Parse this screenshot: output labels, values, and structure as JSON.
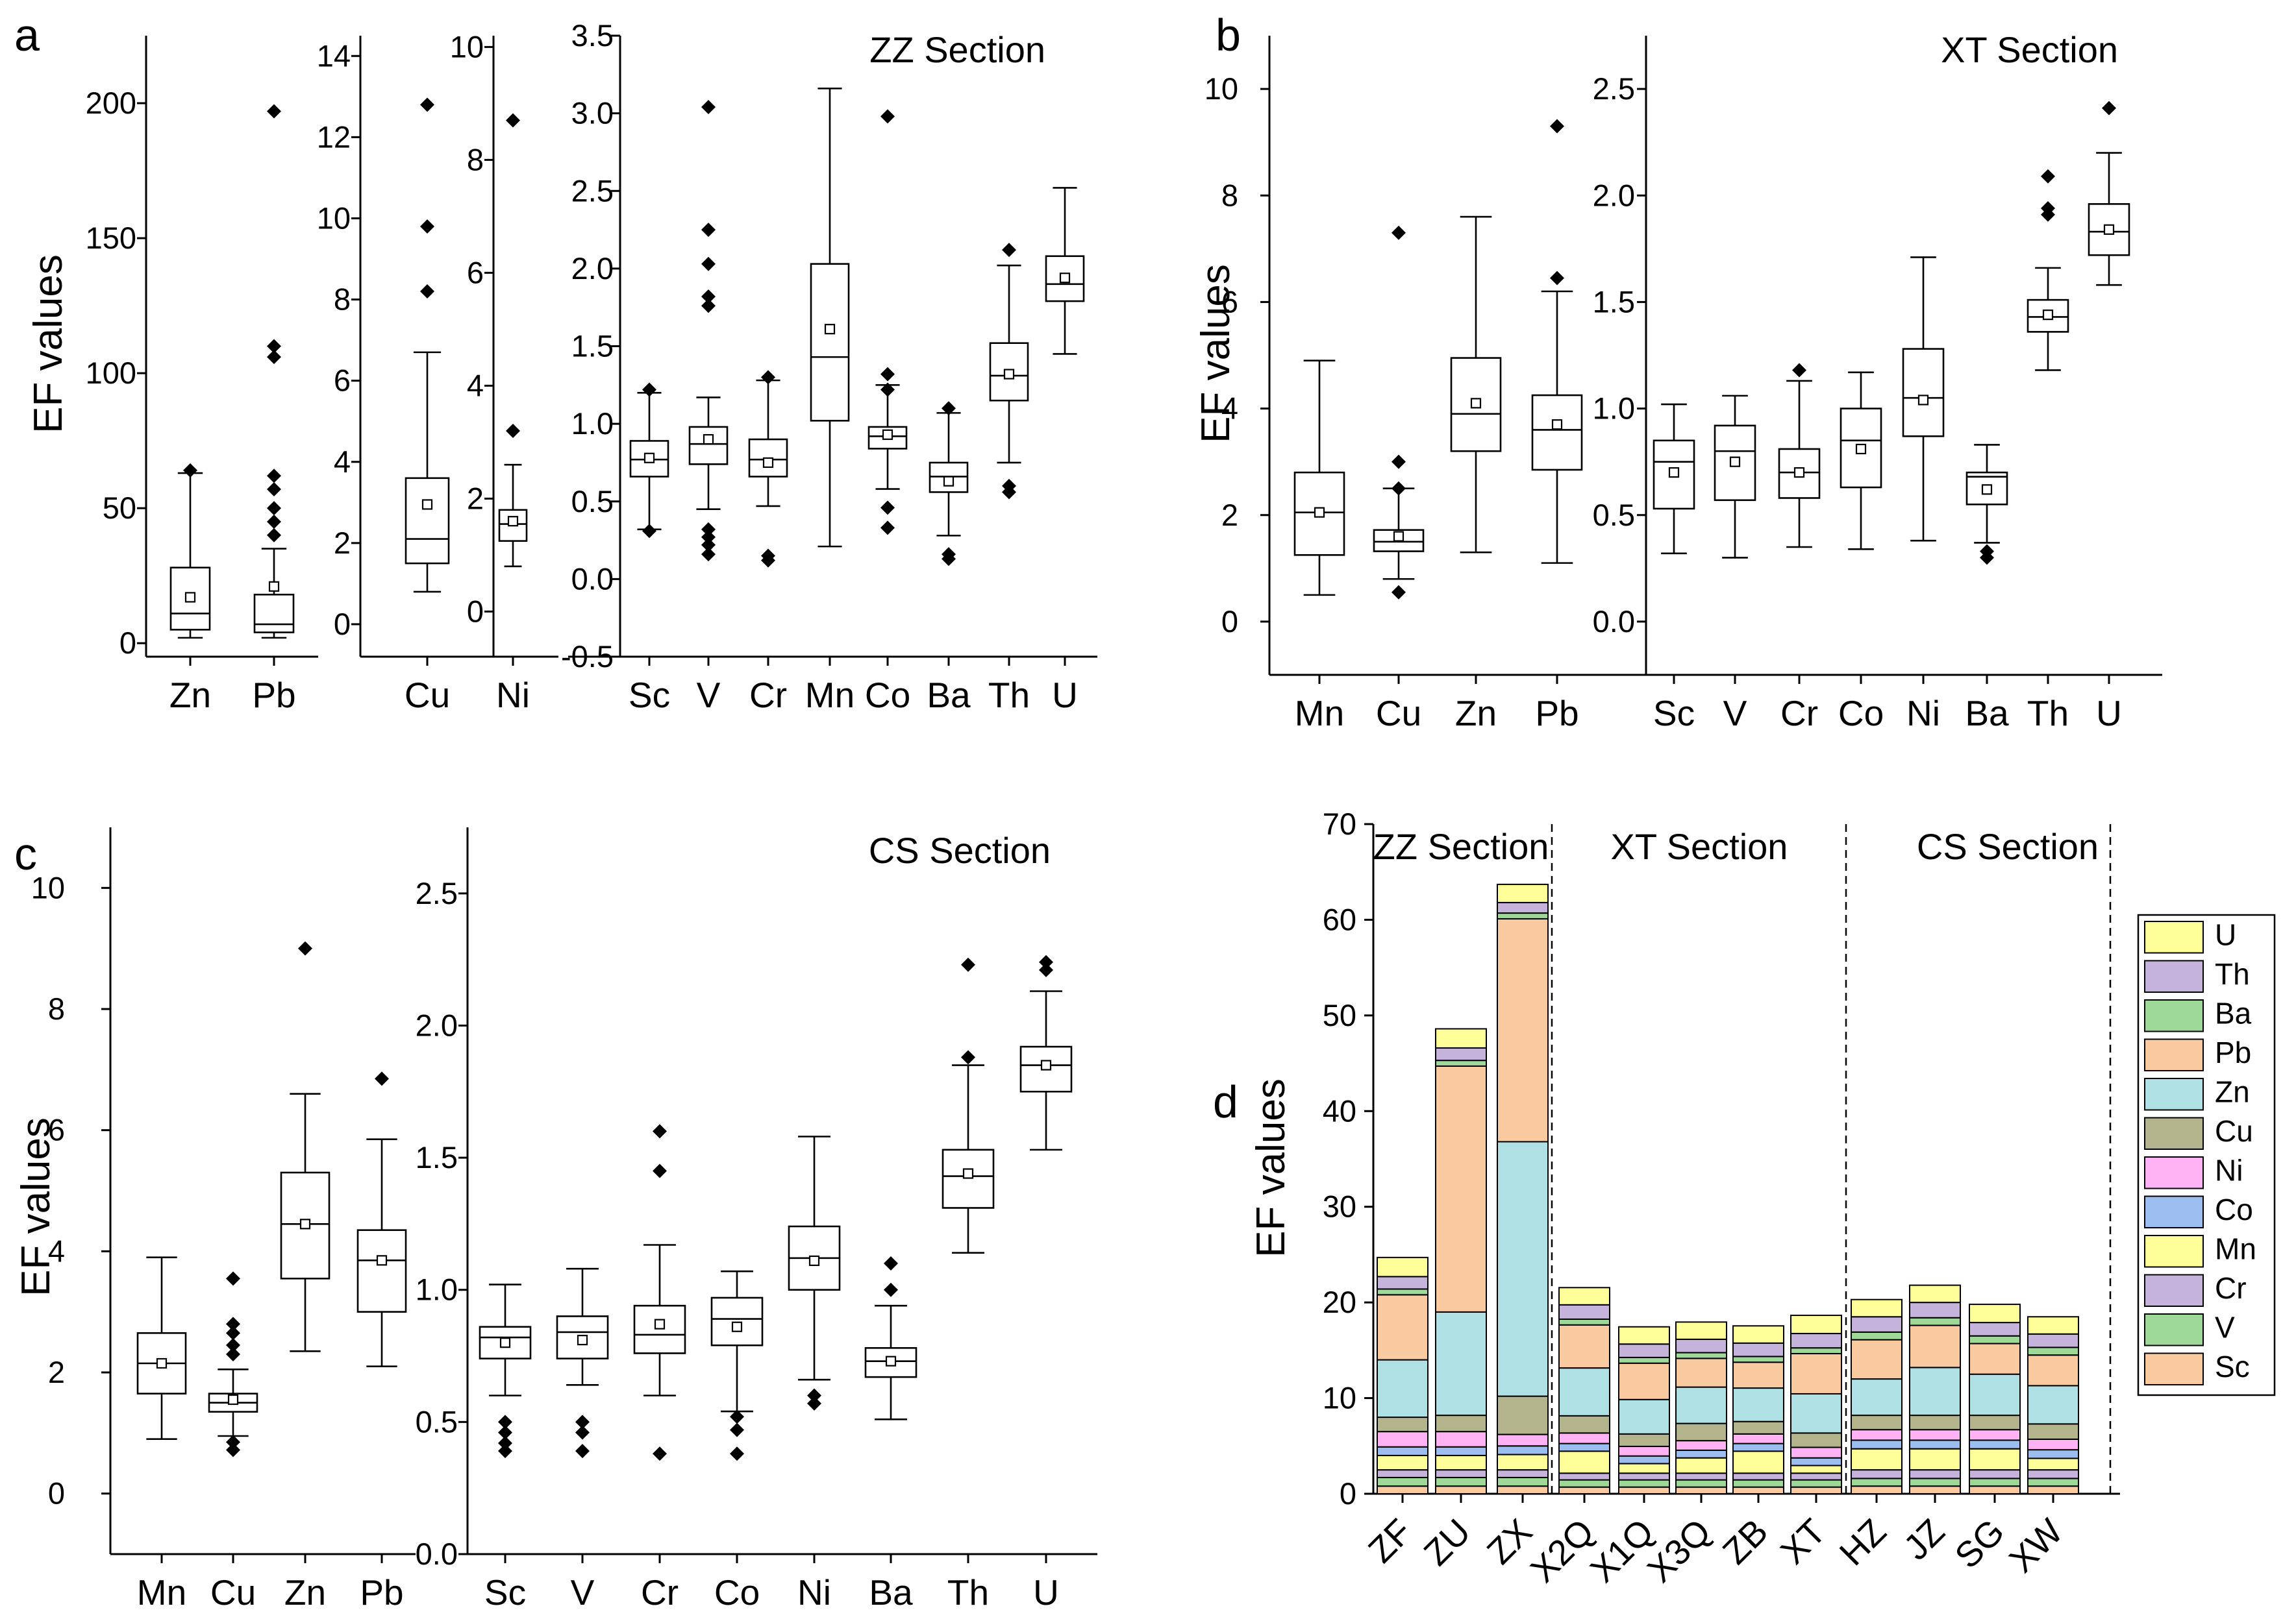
{
  "panels": [
    {
      "id": "a",
      "label": "a",
      "ylabel": "EF values",
      "section": "ZZ Section"
    },
    {
      "id": "b",
      "label": "b",
      "ylabel": "EF values",
      "section": "XT Section"
    },
    {
      "id": "c",
      "label": "c",
      "ylabel": "EF values",
      "section": "CS Section"
    },
    {
      "id": "d",
      "label": "d",
      "ylabel": "EF values"
    }
  ],
  "chart_data": [
    {
      "type": "box",
      "panel": "a",
      "subplot": "a1",
      "categories": [
        "Zn",
        "Pb"
      ],
      "ylim": [
        -5,
        225
      ],
      "yticks": [
        0,
        50,
        100,
        150,
        200
      ],
      "boxes": [
        {
          "min": 2,
          "q1": 5,
          "median": 11,
          "q3": 28,
          "max": 63,
          "mean": 17,
          "outliers": [
            64
          ]
        },
        {
          "min": 2,
          "q1": 4,
          "median": 7,
          "q3": 18,
          "max": 35,
          "mean": 21,
          "outliers": [
            197,
            110,
            106,
            62,
            57,
            50,
            45,
            40
          ]
        }
      ]
    },
    {
      "type": "box",
      "panel": "a",
      "subplot": "a2",
      "categories": [
        "Cu"
      ],
      "ylim": [
        -0.8,
        14.5
      ],
      "yticks": [
        0,
        2,
        4,
        6,
        8,
        10,
        12,
        14
      ],
      "boxes": [
        {
          "min": 0.8,
          "q1": 1.5,
          "median": 2.1,
          "q3": 3.6,
          "max": 6.7,
          "mean": 2.95,
          "outliers": [
            12.8,
            9.8,
            8.2
          ]
        }
      ]
    },
    {
      "type": "box",
      "panel": "a",
      "subplot": "a3",
      "categories": [
        "Ni"
      ],
      "ylim": [
        -0.8,
        10.2
      ],
      "yticks": [
        0,
        2,
        4,
        6,
        8,
        10
      ],
      "boxes": [
        {
          "min": 0.8,
          "q1": 1.25,
          "median": 1.55,
          "q3": 1.8,
          "max": 2.6,
          "mean": 1.6,
          "outliers": [
            8.7,
            3.2
          ]
        }
      ]
    },
    {
      "type": "box",
      "panel": "a",
      "subplot": "a4",
      "categories": [
        "Sc",
        "V",
        "Cr",
        "Mn",
        "Co",
        "Ba",
        "Th",
        "U"
      ],
      "ylim": [
        -0.5,
        3.5
      ],
      "yticks": [
        -0.5,
        0.0,
        0.5,
        1.0,
        1.5,
        2.0,
        2.5,
        3.0,
        3.5
      ],
      "boxes": [
        {
          "min": 0.32,
          "q1": 0.66,
          "median": 0.77,
          "q3": 0.89,
          "max": 1.2,
          "mean": 0.78,
          "outliers": [
            1.22,
            0.31
          ]
        },
        {
          "min": 0.45,
          "q1": 0.74,
          "median": 0.87,
          "q3": 0.98,
          "max": 1.17,
          "mean": 0.9,
          "outliers": [
            3.04,
            2.25,
            2.03,
            1.82,
            1.76,
            0.32,
            0.27,
            0.22,
            0.16
          ]
        },
        {
          "min": 0.47,
          "q1": 0.66,
          "median": 0.77,
          "q3": 0.9,
          "max": 1.28,
          "mean": 0.75,
          "outliers": [
            1.3,
            0.15,
            0.12
          ]
        },
        {
          "min": 0.21,
          "q1": 1.02,
          "median": 1.43,
          "q3": 2.03,
          "max": 3.16,
          "mean": 1.61,
          "outliers": []
        },
        {
          "min": 0.58,
          "q1": 0.84,
          "median": 0.92,
          "q3": 0.98,
          "max": 1.25,
          "mean": 0.93,
          "outliers": [
            2.98,
            1.32,
            1.22,
            0.46,
            0.33
          ]
        },
        {
          "min": 0.28,
          "q1": 0.56,
          "median": 0.66,
          "q3": 0.75,
          "max": 1.07,
          "mean": 0.63,
          "outliers": [
            1.1,
            0.16,
            0.13
          ]
        },
        {
          "min": 0.75,
          "q1": 1.15,
          "median": 1.31,
          "q3": 1.52,
          "max": 2.02,
          "mean": 1.32,
          "outliers": [
            2.12,
            0.6,
            0.56
          ]
        },
        {
          "min": 1.45,
          "q1": 1.79,
          "median": 1.9,
          "q3": 2.08,
          "max": 2.52,
          "mean": 1.94,
          "outliers": []
        }
      ]
    },
    {
      "type": "box",
      "panel": "b",
      "subplot": "b1",
      "categories": [
        "Mn",
        "Cu",
        "Zn",
        "Pb"
      ],
      "ylim": [
        -1,
        11
      ],
      "yticks": [
        0,
        2,
        4,
        6,
        8,
        10
      ],
      "boxes": [
        {
          "min": 0.5,
          "q1": 1.25,
          "median": 2.05,
          "q3": 2.8,
          "max": 4.9,
          "mean": 2.05,
          "outliers": []
        },
        {
          "min": 0.8,
          "q1": 1.32,
          "median": 1.5,
          "q3": 1.72,
          "max": 2.5,
          "mean": 1.6,
          "outliers": [
            7.3,
            3.0,
            2.5,
            0.55
          ]
        },
        {
          "min": 1.3,
          "q1": 3.2,
          "median": 3.9,
          "q3": 4.95,
          "max": 7.6,
          "mean": 4.1,
          "outliers": []
        },
        {
          "min": 1.1,
          "q1": 2.85,
          "median": 3.6,
          "q3": 4.25,
          "max": 6.2,
          "mean": 3.7,
          "outliers": [
            9.3,
            6.45
          ]
        }
      ]
    },
    {
      "type": "box",
      "panel": "b",
      "subplot": "b2",
      "categories": [
        "Sc",
        "V",
        "Cr",
        "Co",
        "Ni",
        "Ba",
        "Th",
        "U"
      ],
      "ylim": [
        -0.25,
        2.75
      ],
      "yticks": [
        0.0,
        0.5,
        1.0,
        1.5,
        2.0,
        2.5
      ],
      "boxes": [
        {
          "min": 0.32,
          "q1": 0.53,
          "median": 0.75,
          "q3": 0.85,
          "max": 1.02,
          "mean": 0.7,
          "outliers": []
        },
        {
          "min": 0.3,
          "q1": 0.57,
          "median": 0.8,
          "q3": 0.92,
          "max": 1.06,
          "mean": 0.75,
          "outliers": []
        },
        {
          "min": 0.35,
          "q1": 0.58,
          "median": 0.7,
          "q3": 0.81,
          "max": 1.13,
          "mean": 0.7,
          "outliers": [
            1.18
          ]
        },
        {
          "min": 0.34,
          "q1": 0.63,
          "median": 0.85,
          "q3": 1.0,
          "max": 1.17,
          "mean": 0.81,
          "outliers": []
        },
        {
          "min": 0.38,
          "q1": 0.87,
          "median": 1.05,
          "q3": 1.28,
          "max": 1.71,
          "mean": 1.04,
          "outliers": []
        },
        {
          "min": 0.37,
          "q1": 0.55,
          "median": 0.68,
          "q3": 0.7,
          "max": 0.83,
          "mean": 0.62,
          "outliers": [
            0.33,
            0.3
          ]
        },
        {
          "min": 1.18,
          "q1": 1.36,
          "median": 1.43,
          "q3": 1.51,
          "max": 1.66,
          "mean": 1.44,
          "outliers": [
            2.09,
            1.94,
            1.91
          ]
        },
        {
          "min": 1.58,
          "q1": 1.72,
          "median": 1.83,
          "q3": 1.96,
          "max": 2.2,
          "mean": 1.84,
          "outliers": [
            2.41
          ]
        }
      ]
    },
    {
      "type": "box",
      "panel": "c",
      "subplot": "c1",
      "categories": [
        "Mn",
        "Cu",
        "Zn",
        "Pb"
      ],
      "ylim": [
        -1,
        11
      ],
      "yticks": [
        0,
        2,
        4,
        6,
        8,
        10
      ],
      "boxes": [
        {
          "min": 0.9,
          "q1": 1.65,
          "median": 2.15,
          "q3": 2.65,
          "max": 3.9,
          "mean": 2.15,
          "outliers": []
        },
        {
          "min": 0.95,
          "q1": 1.35,
          "median": 1.5,
          "q3": 1.65,
          "max": 2.05,
          "mean": 1.55,
          "outliers": [
            3.55,
            2.8,
            2.65,
            2.45,
            2.3,
            0.85,
            0.72
          ]
        },
        {
          "min": 2.35,
          "q1": 3.55,
          "median": 4.45,
          "q3": 5.3,
          "max": 6.6,
          "mean": 4.45,
          "outliers": [
            9.0
          ]
        },
        {
          "min": 2.1,
          "q1": 3.0,
          "median": 3.85,
          "q3": 4.35,
          "max": 5.85,
          "mean": 3.85,
          "outliers": [
            6.85
          ]
        }
      ]
    },
    {
      "type": "box",
      "panel": "c",
      "subplot": "c2",
      "categories": [
        "Sc",
        "V",
        "Cr",
        "Co",
        "Ni",
        "Ba",
        "Th",
        "U"
      ],
      "ylim": [
        0.0,
        2.75
      ],
      "yticks": [
        0.0,
        0.5,
        1.0,
        1.5,
        2.0,
        2.5
      ],
      "boxes": [
        {
          "min": 0.6,
          "q1": 0.74,
          "median": 0.82,
          "q3": 0.86,
          "max": 1.02,
          "mean": 0.8,
          "outliers": [
            0.5,
            0.46,
            0.42,
            0.39
          ]
        },
        {
          "min": 0.64,
          "q1": 0.74,
          "median": 0.84,
          "q3": 0.9,
          "max": 1.08,
          "mean": 0.81,
          "outliers": [
            0.5,
            0.46,
            0.39
          ]
        },
        {
          "min": 0.6,
          "q1": 0.76,
          "median": 0.83,
          "q3": 0.94,
          "max": 1.17,
          "mean": 0.87,
          "outliers": [
            1.6,
            1.45,
            0.38
          ]
        },
        {
          "min": 0.54,
          "q1": 0.79,
          "median": 0.89,
          "q3": 0.97,
          "max": 1.07,
          "mean": 0.86,
          "outliers": [
            0.52,
            0.47,
            0.38
          ]
        },
        {
          "min": 0.66,
          "q1": 1.0,
          "median": 1.12,
          "q3": 1.24,
          "max": 1.58,
          "mean": 1.11,
          "outliers": [
            0.6,
            0.57
          ]
        },
        {
          "min": 0.51,
          "q1": 0.67,
          "median": 0.73,
          "q3": 0.78,
          "max": 0.94,
          "mean": 0.73,
          "outliers": [
            1.1,
            1.0
          ]
        },
        {
          "min": 1.14,
          "q1": 1.31,
          "median": 1.43,
          "q3": 1.53,
          "max": 1.85,
          "mean": 1.44,
          "outliers": [
            2.23,
            1.88
          ]
        },
        {
          "min": 1.53,
          "q1": 1.75,
          "median": 1.85,
          "q3": 1.92,
          "max": 2.13,
          "mean": 1.85,
          "outliers": [
            2.24,
            2.21
          ]
        }
      ]
    },
    {
      "type": "stacked_bar",
      "panel": "d",
      "categories": [
        "ZF",
        "ZU",
        "ZX",
        "X2Q",
        "X1Q",
        "X3Q",
        "ZB",
        "XT",
        "HZ",
        "JZ",
        "SG",
        "XW"
      ],
      "ylim": [
        0,
        70
      ],
      "yticks": [
        0,
        10,
        20,
        30,
        40,
        50,
        60,
        70
      ],
      "sections": [
        {
          "name": "ZZ Section",
          "range": [
            0,
            2
          ]
        },
        {
          "name": "XT Section",
          "range": [
            3,
            7
          ]
        },
        {
          "name": "CS Section",
          "range": [
            8,
            11
          ]
        }
      ],
      "series": [
        {
          "name": "Sc",
          "color": "#f9c9a0",
          "values": [
            0.8,
            0.8,
            0.8,
            0.7,
            0.7,
            0.7,
            0.7,
            0.7,
            0.8,
            0.8,
            0.8,
            0.8
          ]
        },
        {
          "name": "V",
          "color": "#9ed99a",
          "values": [
            0.9,
            0.9,
            0.9,
            0.75,
            0.75,
            0.75,
            0.75,
            0.75,
            0.8,
            0.8,
            0.8,
            0.8
          ]
        },
        {
          "name": "Cr",
          "color": "#c5b3db",
          "values": [
            0.8,
            0.8,
            0.8,
            0.7,
            0.7,
            0.7,
            0.7,
            0.7,
            0.9,
            0.9,
            0.9,
            0.9
          ]
        },
        {
          "name": "Mn",
          "color": "#ffff9a",
          "values": [
            1.5,
            1.5,
            1.6,
            2.3,
            1.0,
            1.6,
            2.3,
            0.8,
            2.2,
            2.2,
            2.2,
            1.2
          ]
        },
        {
          "name": "Co",
          "color": "#9bbdf0",
          "values": [
            0.9,
            0.9,
            0.9,
            0.8,
            0.8,
            0.8,
            0.8,
            0.8,
            0.9,
            0.9,
            0.9,
            0.9
          ]
        },
        {
          "name": "Ni",
          "color": "#ffb3f5",
          "values": [
            1.6,
            1.6,
            1.2,
            1.1,
            1.0,
            1.0,
            1.0,
            1.1,
            1.1,
            1.1,
            1.1,
            1.1
          ]
        },
        {
          "name": "Cu",
          "color": "#b3b38c",
          "values": [
            1.5,
            1.7,
            4.0,
            1.8,
            1.3,
            1.8,
            1.3,
            1.5,
            1.5,
            1.5,
            1.5,
            1.6
          ]
        },
        {
          "name": "Zn",
          "color": "#aee0e4",
          "values": [
            6.0,
            10.8,
            26.6,
            5.0,
            3.6,
            3.8,
            3.5,
            4.1,
            3.8,
            5.0,
            4.3,
            4.0
          ]
        },
        {
          "name": "Pb",
          "color": "#f9c9a0",
          "values": [
            6.8,
            25.7,
            23.3,
            4.5,
            3.8,
            3.0,
            2.7,
            4.2,
            4.1,
            4.4,
            3.2,
            3.2
          ]
        },
        {
          "name": "Ba",
          "color": "#9ed99a",
          "values": [
            0.6,
            0.6,
            0.6,
            0.6,
            0.6,
            0.6,
            0.6,
            0.6,
            0.8,
            0.8,
            0.8,
            0.8
          ]
        },
        {
          "name": "Th",
          "color": "#c5b3db",
          "values": [
            1.3,
            1.3,
            1.1,
            1.5,
            1.4,
            1.4,
            1.4,
            1.5,
            1.6,
            1.6,
            1.4,
            1.4
          ]
        },
        {
          "name": "U",
          "color": "#ffff9a",
          "values": [
            2.0,
            2.0,
            1.9,
            1.8,
            1.8,
            1.8,
            1.8,
            1.9,
            1.8,
            1.8,
            1.9,
            1.8
          ]
        }
      ]
    }
  ]
}
